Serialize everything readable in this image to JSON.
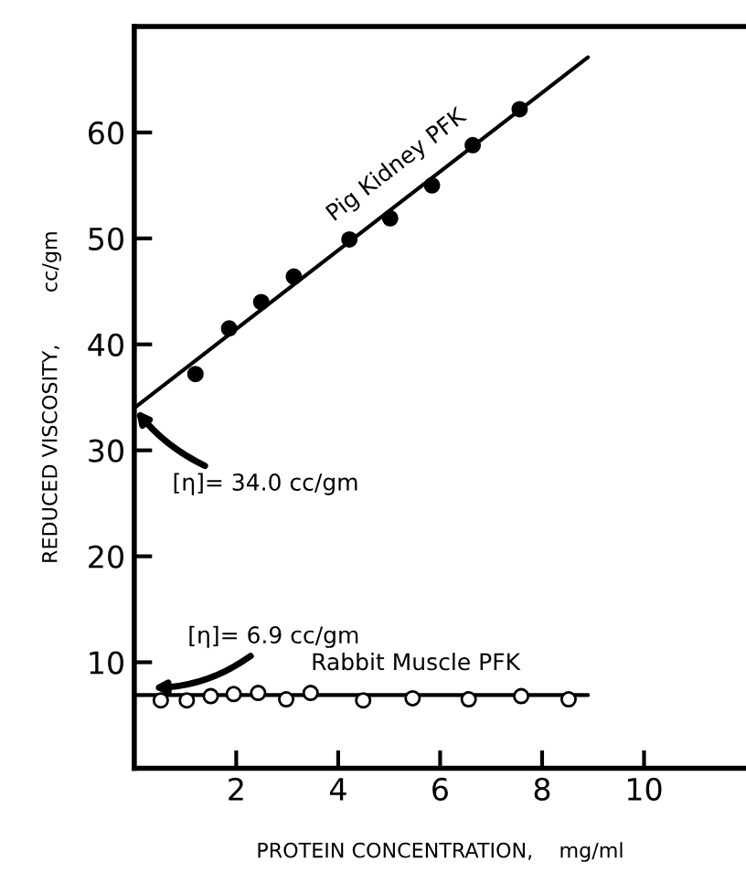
{
  "chart_data": {
    "type": "scatter",
    "xlabel": "PROTEIN CONCENTRATION,    mg/ml",
    "ylabel": "REDUCED VISCOSITY,        cc/gm",
    "xlim": [
      0,
      12
    ],
    "ylim": [
      0,
      70
    ],
    "xticks": [
      2,
      4,
      6,
      8,
      10
    ],
    "yticks": [
      10,
      20,
      30,
      40,
      50,
      60
    ],
    "series": [
      {
        "marker": "circle",
        "color": "#000000",
        "x": [
          1.2,
          1.86,
          2.49,
          3.13,
          4.22,
          5.02,
          5.84,
          6.64,
          7.56
        ],
        "values": [
          37.2,
          41.5,
          44.0,
          46.4,
          49.9,
          51.9,
          55.0,
          58.8,
          62.2
        ]
      },
      {
        "type": "line",
        "marker": "none",
        "name": "Pig Kidney PFK",
        "color": "#000000",
        "x": [
          0,
          8.9
        ],
        "values": [
          34.0,
          67.1
        ]
      },
      {
        "marker": "circle",
        "color": "#ffffff",
        "x": [
          0.52,
          1.03,
          1.5,
          1.95,
          2.43,
          2.98,
          3.46,
          4.49,
          5.46,
          6.56,
          7.59,
          8.52
        ],
        "values": [
          6.4,
          6.4,
          6.8,
          7.0,
          7.1,
          6.5,
          7.1,
          6.4,
          6.6,
          6.5,
          6.8,
          6.5
        ]
      },
      {
        "type": "line",
        "marker": "none",
        "name": "Rabbit Muscle PFK",
        "color": "#000000",
        "x": [
          0,
          8.9
        ],
        "values": [
          6.9,
          6.9
        ]
      }
    ],
    "annotations": [
      {
        "text": "[η]= 34.0 cc/gm",
        "x": 0,
        "y": 34.0
      },
      {
        "text": "[η]= 6.9 cc/gm",
        "x": 0.3,
        "y": 7.6
      }
    ]
  }
}
